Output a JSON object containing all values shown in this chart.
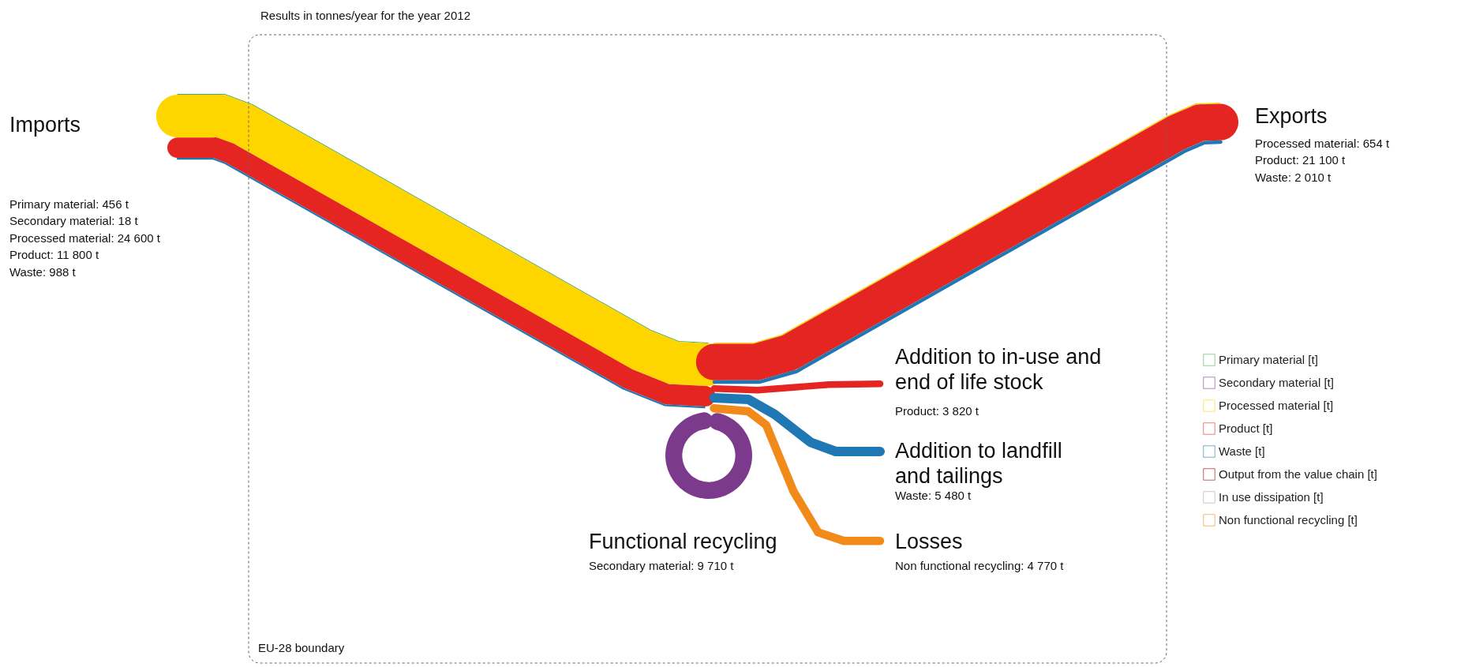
{
  "chart_data": {
    "type": "other",
    "categories": [
      "Imports",
      "Exports",
      "Addition to in-use and\nend of life stock",
      "Addition to landfill\nand tailings",
      "Functional recycling",
      "Losses"
    ],
    "series": [
      {
        "name": "Primary material [t]",
        "color": "#4caf50",
        "values": [
          456,
          null,
          null,
          null,
          null,
          null
        ],
        "value_labels": [
          "Primary material: 456 t",
          null,
          null,
          null,
          null,
          null
        ]
      },
      {
        "name": "Secondary material [t]",
        "color": "#7b3a8c",
        "values": [
          18,
          null,
          null,
          null,
          9710,
          null
        ],
        "value_labels": [
          "Secondary material: 18 t",
          null,
          null,
          null,
          "Secondary material: 9 710 t",
          null
        ]
      },
      {
        "name": "Processed material [t]",
        "color": "#ffd500",
        "values": [
          24600,
          654,
          null,
          null,
          null,
          null
        ],
        "value_labels": [
          "Processed material: 24 600 t",
          "Processed material: 654 t",
          null,
          null,
          null,
          null
        ]
      },
      {
        "name": "Product [t]",
        "color": "#e52521",
        "values": [
          11800,
          21100,
          3820,
          null,
          null,
          null
        ],
        "value_labels": [
          "Product: 11 800 t",
          "Product: 21 100 t",
          "Product: 3 820 t",
          null,
          null,
          null
        ]
      },
      {
        "name": "Waste [t]",
        "color": "#1f78b4",
        "values": [
          988,
          2010,
          null,
          5480,
          null,
          null
        ],
        "value_labels": [
          "Waste: 988 t",
          "Waste: 2 010 t",
          null,
          "Waste: 5 480 t",
          null,
          null
        ]
      },
      {
        "name": "Output from the value chain [t]",
        "color": "#7f0000",
        "values": [
          null,
          null,
          null,
          null,
          null,
          null
        ]
      },
      {
        "name": "In use dissipation [t]",
        "color": "#a6a6a6",
        "values": [
          null,
          null,
          null,
          null,
          null,
          null
        ]
      },
      {
        "name": "Non functional recycling [t]",
        "color": "#f28a1a",
        "values": [
          null,
          null,
          null,
          null,
          null,
          4770
        ],
        "value_labels": [
          null,
          null,
          null,
          null,
          null,
          "Non functional recycling: 4 770 t"
        ]
      }
    ],
    "annotations": [
      "Results in tonnes/year for the year 2012",
      "EU-28 boundary"
    ],
    "legend": "right"
  }
}
